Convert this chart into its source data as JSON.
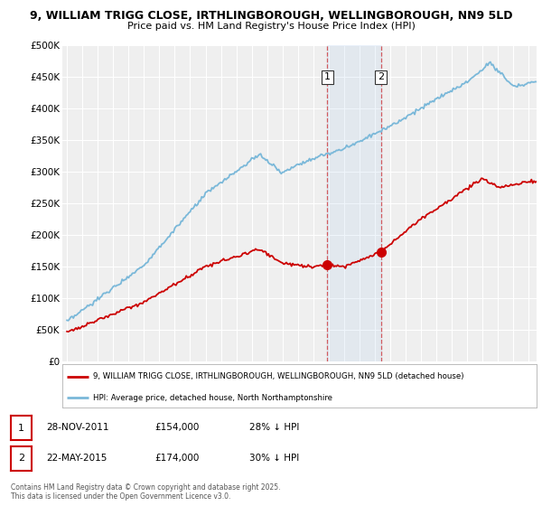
{
  "title_line1": "9, WILLIAM TRIGG CLOSE, IRTHLINGBOROUGH, WELLINGBOROUGH, NN9 5LD",
  "title_line2": "Price paid vs. HM Land Registry's House Price Index (HPI)",
  "hpi_color": "#7ab8d9",
  "price_color": "#cc0000",
  "background_color": "#ffffff",
  "plot_bg_color": "#efefef",
  "grid_color": "#ffffff",
  "ylim": [
    0,
    500000
  ],
  "yticks": [
    0,
    50000,
    100000,
    150000,
    200000,
    250000,
    300000,
    350000,
    400000,
    450000,
    500000
  ],
  "ytick_labels": [
    "£0",
    "£50K",
    "£100K",
    "£150K",
    "£200K",
    "£250K",
    "£300K",
    "£350K",
    "£400K",
    "£450K",
    "£500K"
  ],
  "sale1_x": 2011.91,
  "sale1_price": 154000,
  "sale2_x": 2015.39,
  "sale2_price": 174000,
  "legend_line1": "9, WILLIAM TRIGG CLOSE, IRTHLINGBOROUGH, WELLINGBOROUGH, NN9 5LD (detached house)",
  "legend_line2": "HPI: Average price, detached house, North Northamptonshire",
  "copyright": "Contains HM Land Registry data © Crown copyright and database right 2025.\nThis data is licensed under the Open Government Licence v3.0.",
  "xmin": 1995,
  "xmax": 2025.5
}
